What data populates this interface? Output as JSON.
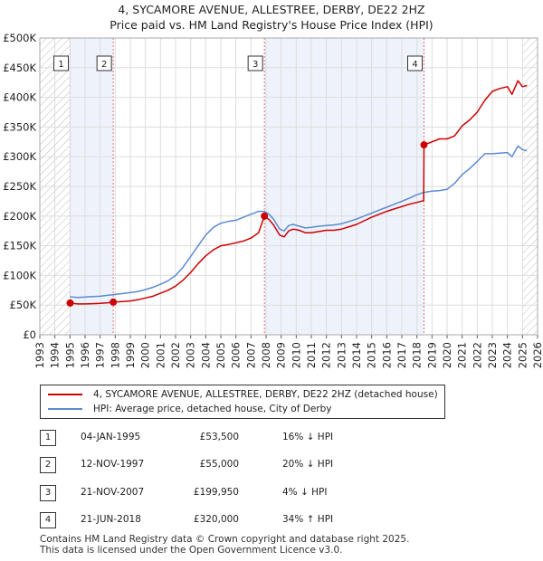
{
  "header": {
    "title_line1": "4, SYCAMORE AVENUE, ALLESTREE, DERBY, DE22 2HZ",
    "title_line2": "Price paid vs. HM Land Registry's House Price Index (HPI)"
  },
  "legend": {
    "property_label": "4, SYCAMORE AVENUE, ALLESTREE, DERBY, DE22 2HZ (detached house)",
    "hpi_label": "HPI: Average price, detached house, City of Derby"
  },
  "transactions": [
    {
      "num": "1",
      "date": "04-JAN-1995",
      "price": "£53,500",
      "hpi": "16% ↓ HPI"
    },
    {
      "num": "2",
      "date": "12-NOV-1997",
      "price": "£55,000",
      "hpi": "20% ↓ HPI"
    },
    {
      "num": "3",
      "date": "21-NOV-2007",
      "price": "£199,950",
      "hpi": "4% ↓ HPI"
    },
    {
      "num": "4",
      "date": "21-JUN-2018",
      "price": "£320,000",
      "hpi": "34% ↑ HPI"
    }
  ],
  "footer": {
    "line1": "Contains HM Land Registry data © Crown copyright and database right 2025.",
    "line2": "This data is licensed under the Open Government Licence v3.0."
  },
  "colors": {
    "property": "#cc0000",
    "hpi": "#5b8bd0",
    "shade": "#eef2fb",
    "vline": "#e07070",
    "grid": "#dddddd"
  },
  "chart_data": {
    "type": "line",
    "title": "4, SYCAMORE AVENUE, ALLESTREE, DERBY, DE22 2HZ — Price paid vs. HM Land Registry's House Price Index (HPI)",
    "xlabel": "",
    "ylabel": "",
    "xlim": [
      1993,
      2026
    ],
    "ylim": [
      0,
      500000
    ],
    "x_ticks": [
      1993,
      1994,
      1995,
      1996,
      1997,
      1998,
      1999,
      2000,
      2001,
      2002,
      2003,
      2004,
      2005,
      2006,
      2007,
      2008,
      2009,
      2010,
      2011,
      2012,
      2013,
      2014,
      2015,
      2016,
      2017,
      2018,
      2019,
      2020,
      2021,
      2022,
      2023,
      2024,
      2025,
      2026
    ],
    "y_ticks": [
      0,
      50000,
      100000,
      150000,
      200000,
      250000,
      300000,
      350000,
      400000,
      450000,
      500000
    ],
    "y_tick_labels": [
      "£0",
      "£50K",
      "£100K",
      "£150K",
      "£200K",
      "£250K",
      "£300K",
      "£350K",
      "£400K",
      "£450K",
      "£500K"
    ],
    "grid": true,
    "series": [
      {
        "name": "4, SYCAMORE AVENUE, ALLESTREE, DERBY, DE22 2HZ (detached house)",
        "x": [
          1995.0,
          1995.5,
          1996.0,
          1996.5,
          1997.0,
          1997.5,
          1997.87,
          1998.5,
          1999.0,
          1999.5,
          2000.0,
          2000.5,
          2001.0,
          2001.5,
          2002.0,
          2002.5,
          2003.0,
          2003.5,
          2004.0,
          2004.5,
          2005.0,
          2005.5,
          2006.0,
          2006.5,
          2007.0,
          2007.5,
          2007.89,
          2008.2,
          2008.5,
          2008.9,
          2009.2,
          2009.5,
          2009.8,
          2010.2,
          2010.6,
          2011.0,
          2011.5,
          2012.0,
          2012.5,
          2013.0,
          2013.5,
          2014.0,
          2014.5,
          2015.0,
          2015.5,
          2016.0,
          2016.5,
          2017.0,
          2017.5,
          2018.0,
          2018.45,
          2018.47,
          2019.0,
          2019.5,
          2020.0,
          2020.5,
          2021.0,
          2021.5,
          2022.0,
          2022.5,
          2023.0,
          2023.5,
          2024.0,
          2024.3,
          2024.7,
          2025.0,
          2025.3
        ],
        "y": [
          53500,
          52000,
          52000,
          52500,
          53000,
          54000,
          55000,
          56000,
          57000,
          59000,
          62000,
          65000,
          70000,
          75000,
          82000,
          92000,
          105000,
          120000,
          133000,
          143000,
          150000,
          152000,
          155000,
          158000,
          163000,
          172000,
          199950,
          194000,
          185000,
          168000,
          165000,
          175000,
          178000,
          176000,
          172000,
          172000,
          174000,
          176000,
          176000,
          178000,
          182000,
          186000,
          192000,
          198000,
          203000,
          208000,
          212000,
          216000,
          220000,
          223000,
          226000,
          320000,
          325000,
          330000,
          330000,
          335000,
          352000,
          362000,
          375000,
          395000,
          410000,
          415000,
          418000,
          405000,
          428000,
          418000,
          420000
        ]
      },
      {
        "name": "HPI: Average price, detached house, City of Derby",
        "x": [
          1995.0,
          1995.5,
          1996.0,
          1996.5,
          1997.0,
          1997.5,
          1998.0,
          1998.5,
          1999.0,
          1999.5,
          2000.0,
          2000.5,
          2001.0,
          2001.5,
          2002.0,
          2002.5,
          2003.0,
          2003.5,
          2004.0,
          2004.5,
          2005.0,
          2005.5,
          2006.0,
          2006.5,
          2007.0,
          2007.5,
          2007.89,
          2008.2,
          2008.5,
          2008.9,
          2009.2,
          2009.5,
          2009.8,
          2010.2,
          2010.6,
          2011.0,
          2011.5,
          2012.0,
          2012.5,
          2013.0,
          2013.5,
          2014.0,
          2014.5,
          2015.0,
          2015.5,
          2016.0,
          2016.5,
          2017.0,
          2017.5,
          2018.0,
          2018.47,
          2019.0,
          2019.5,
          2020.0,
          2020.5,
          2021.0,
          2021.5,
          2022.0,
          2022.5,
          2023.0,
          2023.5,
          2024.0,
          2024.3,
          2024.7,
          2025.0,
          2025.3
        ],
        "y": [
          64000,
          63000,
          63500,
          64500,
          65000,
          66500,
          68000,
          69500,
          71000,
          73000,
          76000,
          80000,
          85000,
          91000,
          100000,
          114000,
          132000,
          150000,
          168000,
          181000,
          188000,
          191000,
          193000,
          198000,
          203000,
          208000,
          208000,
          203000,
          195000,
          178000,
          175000,
          184000,
          186000,
          183000,
          180000,
          181000,
          183000,
          184000,
          185000,
          187000,
          191000,
          195000,
          200000,
          205000,
          210000,
          215000,
          220000,
          225000,
          230000,
          236000,
          240000,
          242000,
          243000,
          245000,
          255000,
          270000,
          280000,
          292000,
          305000,
          305000,
          306000,
          307000,
          300000,
          318000,
          312000,
          310000
        ]
      }
    ],
    "sale_points": [
      {
        "label": "1",
        "x": 1995.01,
        "y": 53500
      },
      {
        "label": "2",
        "x": 1997.87,
        "y": 55000
      },
      {
        "label": "3",
        "x": 2007.89,
        "y": 199950
      },
      {
        "label": "4",
        "x": 2018.47,
        "y": 320000
      }
    ],
    "shaded_periods": [
      [
        1995.01,
        1997.87
      ],
      [
        2007.89,
        2018.47
      ]
    ],
    "hatched_periods": [
      [
        1993.0,
        1995.0
      ],
      [
        2025.0,
        2026.0
      ]
    ]
  }
}
